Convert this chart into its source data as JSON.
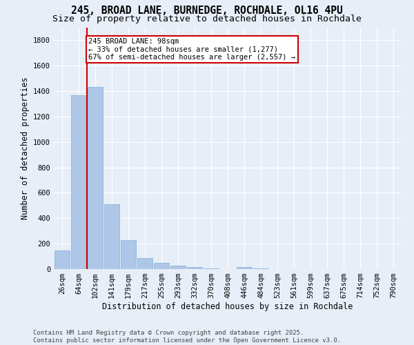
{
  "title_line1": "245, BROAD LANE, BURNEDGE, ROCHDALE, OL16 4PU",
  "title_line2": "Size of property relative to detached houses in Rochdale",
  "xlabel": "Distribution of detached houses by size in Rochdale",
  "ylabel": "Number of detached properties",
  "categories": [
    "26sqm",
    "64sqm",
    "102sqm",
    "141sqm",
    "179sqm",
    "217sqm",
    "255sqm",
    "293sqm",
    "332sqm",
    "370sqm",
    "408sqm",
    "446sqm",
    "484sqm",
    "523sqm",
    "561sqm",
    "599sqm",
    "637sqm",
    "675sqm",
    "714sqm",
    "752sqm",
    "790sqm"
  ],
  "values": [
    145,
    1370,
    1435,
    510,
    230,
    88,
    50,
    28,
    18,
    5,
    0,
    15,
    3,
    0,
    0,
    0,
    0,
    0,
    0,
    0,
    0
  ],
  "bar_color": "#aec6e8",
  "bar_edge_color": "#7bafd4",
  "vline_x_index": 2,
  "vline_color": "#cc0000",
  "annotation_text": "245 BROAD LANE: 98sqm\n← 33% of detached houses are smaller (1,277)\n67% of semi-detached houses are larger (2,557) →",
  "annotation_box_color": "#ffffff",
  "annotation_box_edge": "#cc0000",
  "background_color": "#e8eef7",
  "grid_color": "#ffffff",
  "ylim": [
    0,
    1900
  ],
  "yticks": [
    0,
    200,
    400,
    600,
    800,
    1000,
    1200,
    1400,
    1600,
    1800
  ],
  "footer_line1": "Contains HM Land Registry data © Crown copyright and database right 2025.",
  "footer_line2": "Contains public sector information licensed under the Open Government Licence v3.0.",
  "title_fontsize": 10.5,
  "subtitle_fontsize": 9.5,
  "axis_label_fontsize": 8.5,
  "tick_fontsize": 7.5,
  "annotation_fontsize": 7.5,
  "footer_fontsize": 6.5
}
